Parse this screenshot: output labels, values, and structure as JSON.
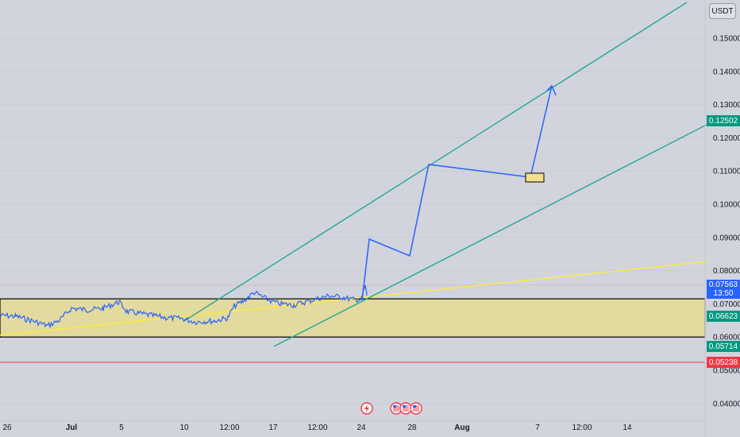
{
  "price_axis": {
    "currency": "USDT",
    "ticks": [
      {
        "label": "0.15000",
        "value": 0.15
      },
      {
        "label": "0.14000",
        "value": 0.14
      },
      {
        "label": "0.13000",
        "value": 0.13
      },
      {
        "label": "0.12000",
        "value": 0.12
      },
      {
        "label": "0.11000",
        "value": 0.11
      },
      {
        "label": "0.10000",
        "value": 0.1
      },
      {
        "label": "0.09000",
        "value": 0.09
      },
      {
        "label": "0.08000",
        "value": 0.08
      },
      {
        "label": "0.07000",
        "value": 0.07
      },
      {
        "label": "0.06000",
        "value": 0.06
      },
      {
        "label": "0.05000",
        "value": 0.05
      },
      {
        "label": "0.04000",
        "value": 0.04
      }
    ],
    "tags": [
      {
        "label": "0.12502",
        "value": 0.12502,
        "color": "#089981"
      },
      {
        "label": "0.07563",
        "sub": "13:50",
        "value": 0.07563,
        "color": "#2962ff"
      },
      {
        "label": "0.06623",
        "value": 0.06623,
        "color": "#089981"
      },
      {
        "label": "0.05714",
        "value": 0.05714,
        "color": "#089981"
      },
      {
        "label": "0.05238",
        "value": 0.05238,
        "color": "#f23645"
      }
    ]
  },
  "time_axis": {
    "ticks": [
      {
        "label": "26",
        "bold": false
      },
      {
        "label": "Jul",
        "bold": true
      },
      {
        "label": "5",
        "bold": false
      },
      {
        "label": "10",
        "bold": false
      },
      {
        "label": "12:00",
        "bold": false
      },
      {
        "label": "17",
        "bold": false
      },
      {
        "label": "12:00",
        "bold": false
      },
      {
        "label": "24",
        "bold": false
      },
      {
        "label": "28",
        "bold": false
      },
      {
        "label": "Aug",
        "bold": true
      },
      {
        "label": "7",
        "bold": false
      },
      {
        "label": "12:00",
        "bold": false
      },
      {
        "label": "14",
        "bold": false
      }
    ]
  },
  "drawings": {
    "channel_color": "#26a69a",
    "trend_color": "#ffeb3b",
    "projection_color": "#2962ff",
    "support_zone": {
      "top": 0.0715,
      "bottom": 0.06,
      "fill": "#e2da9e",
      "border": "#000000"
    },
    "red_line": {
      "value": 0.05238,
      "color": "#f23645"
    },
    "price_color": "#2962ff"
  },
  "events": [
    {
      "icon": "lightning-icon",
      "color": "#f23645"
    },
    {
      "icon": "us-flag-icon",
      "color": "#f23645"
    },
    {
      "icon": "us-flag-icon",
      "color": "#f23645"
    },
    {
      "icon": "us-flag-icon",
      "color": "#f23645"
    }
  ]
}
